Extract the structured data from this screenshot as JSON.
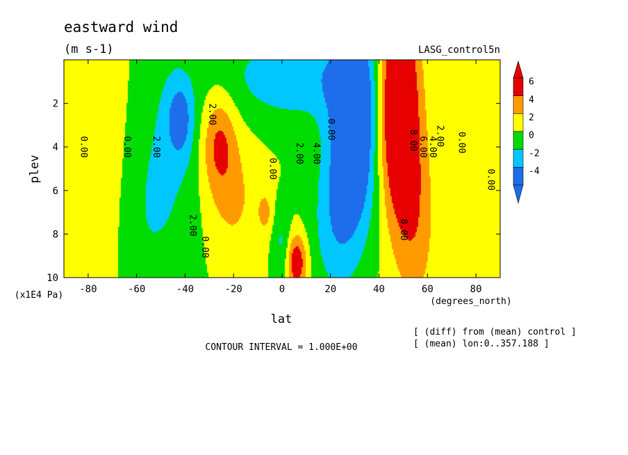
{
  "chart_data": {
    "type": "heatmap",
    "title": "eastward wind",
    "subtitle": "(m s-1)",
    "dataset_label": "LASG_control5n",
    "xlabel": "lat",
    "x_units": "(degrees_north)",
    "ylabel": "plev",
    "y_units": "(x1E4 Pa)",
    "xlim": [
      -90,
      90
    ],
    "ylim": [
      10,
      0
    ],
    "x_ticks": [
      -80,
      -60,
      -40,
      -20,
      0,
      20,
      40,
      60,
      80
    ],
    "x_tick_labels": [
      "-80",
      "-60",
      "-40",
      "-20",
      "0",
      "20",
      "40",
      "60",
      "80"
    ],
    "y_ticks": [
      2,
      4,
      6,
      8,
      10
    ],
    "y_tick_labels": [
      "2",
      "4",
      "6",
      "8",
      "10"
    ],
    "contour_interval_text": "CONTOUR INTERVAL = 1.000E+00",
    "notes": [
      "[ (diff) from (mean) control ]",
      "[ (mean) lon:0..357.188 ]"
    ],
    "colorbar": {
      "labels": [
        "6",
        "4",
        "2",
        "0",
        "-2",
        "-4"
      ],
      "levels": [
        -4,
        -2,
        0,
        2,
        4,
        6
      ],
      "colors": [
        "#1e6eeb",
        "#00c8ff",
        "#00dc00",
        "#ffff00",
        "#ff9b00",
        "#e60000"
      ],
      "under_color": "#1e6eeb",
      "over_color": "#e60000"
    },
    "contour_labels": [
      {
        "text": "0.00",
        "lat": -83,
        "plev": 4.0
      },
      {
        "text": "0.00",
        "lat": -65,
        "plev": 4.0
      },
      {
        "text": "2.00",
        "lat": -53,
        "plev": 4.0
      },
      {
        "text": "2.00",
        "lat": -30,
        "plev": 2.5
      },
      {
        "text": "0.00",
        "lat": -5,
        "plev": 5.0
      },
      {
        "text": "2.00",
        "lat": 6,
        "plev": 4.3
      },
      {
        "text": "4.00",
        "lat": 13,
        "plev": 4.3
      },
      {
        "text": "0.00",
        "lat": 19,
        "plev": 3.2
      },
      {
        "text": "2.00",
        "lat": -38,
        "plev": 7.6
      },
      {
        "text": "0.00",
        "lat": -33,
        "plev": 8.6
      },
      {
        "text": "8.00",
        "lat": 49,
        "plev": 7.8
      },
      {
        "text": "8.00",
        "lat": 53,
        "plev": 3.7
      },
      {
        "text": "6.00",
        "lat": 57,
        "plev": 4.0
      },
      {
        "text": "4.00",
        "lat": 61,
        "plev": 4.0
      },
      {
        "text": "2.00",
        "lat": 64,
        "plev": 3.5
      },
      {
        "text": "0.00",
        "lat": 73,
        "plev": 3.8
      },
      {
        "text": "0.00",
        "lat": 85,
        "plev": 5.5
      }
    ],
    "field_features": [
      {
        "kind": "max",
        "lat": 48,
        "plev": 2.0,
        "value": 9
      },
      {
        "kind": "max",
        "lat": -26,
        "plev": 3.8,
        "value": 4
      },
      {
        "kind": "max",
        "lat": 6,
        "plev": 9.3,
        "value": 6
      },
      {
        "kind": "max",
        "lat": -7,
        "plev": 7.0,
        "value": 2.5
      },
      {
        "kind": "min",
        "lat": 30,
        "plev": 3.0,
        "value": -8
      },
      {
        "kind": "min",
        "lat": -42,
        "plev": 2.7,
        "value": -4
      },
      {
        "kind": "min",
        "lat": 0,
        "plev": 8.5,
        "value": -2.5
      }
    ]
  }
}
